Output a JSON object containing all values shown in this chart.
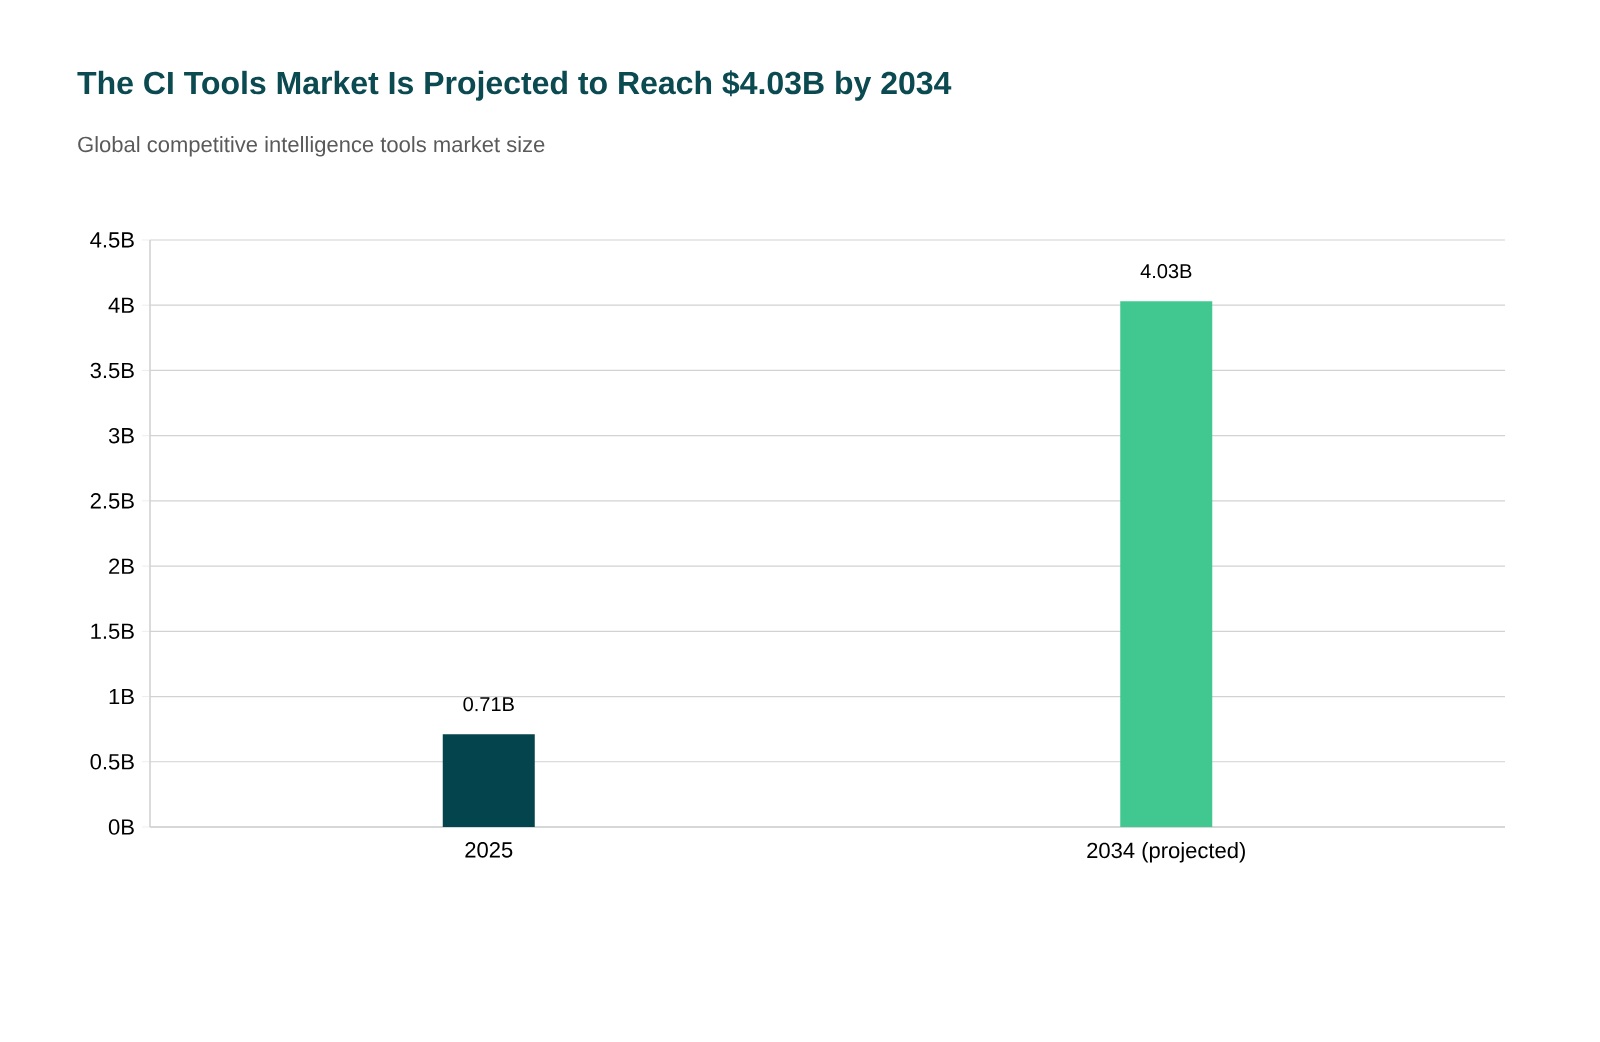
{
  "chart_data": {
    "type": "bar",
    "title": "The CI Tools Market Is Projected to Reach $4.03B by 2034",
    "subtitle": "Global competitive intelligence tools market size",
    "categories": [
      "2025",
      "2034 (projected)"
    ],
    "values": [
      0.71,
      4.03
    ],
    "colors": [
      "#04454d",
      "#41c890"
    ],
    "value_labels": [
      "0.71B",
      "4.03B"
    ],
    "ylim": [
      0,
      4.5
    ],
    "yticks": [
      {
        "value": 0,
        "label": "0B"
      },
      {
        "value": 0.5,
        "label": "0.5B"
      },
      {
        "value": 1,
        "label": "1B"
      },
      {
        "value": 1.5,
        "label": "1.5B"
      },
      {
        "value": 2,
        "label": "2B"
      },
      {
        "value": 2.5,
        "label": "2.5B"
      },
      {
        "value": 3,
        "label": "3B"
      },
      {
        "value": 3.5,
        "label": "3.5B"
      },
      {
        "value": 4,
        "label": "4B"
      },
      {
        "value": 4.5,
        "label": "4.5B"
      }
    ],
    "grid": "y"
  }
}
